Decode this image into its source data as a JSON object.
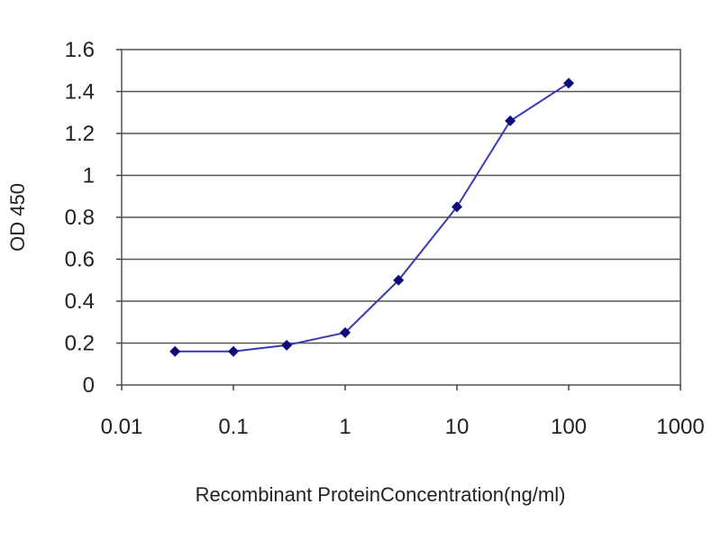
{
  "chart_data": {
    "type": "line",
    "xlabel": "Recombinant ProteinConcentration(ng/ml)",
    "ylabel": "OD 450",
    "x_scale": "log",
    "xlim": [
      0.01,
      1000
    ],
    "ylim": [
      0,
      1.6
    ],
    "x_ticks": [
      "0.01",
      "0.1",
      "1",
      "10",
      "100",
      "1000"
    ],
    "y_ticks": [
      "0",
      "0.2",
      "0.4",
      "0.6",
      "0.8",
      "1",
      "1.2",
      "1.4",
      "1.6"
    ],
    "grid": "horizontal",
    "legend": "none",
    "series": [
      {
        "x": [
          0.03,
          0.1,
          0.3,
          1,
          3,
          10,
          30,
          100
        ],
        "y": [
          0.16,
          0.16,
          0.19,
          0.25,
          0.5,
          0.85,
          1.26,
          1.44
        ]
      }
    ],
    "colors": {
      "line": "#3a3ab0",
      "marker": "#0b0b7a",
      "grid": "#555555",
      "axis": "#444444"
    }
  }
}
